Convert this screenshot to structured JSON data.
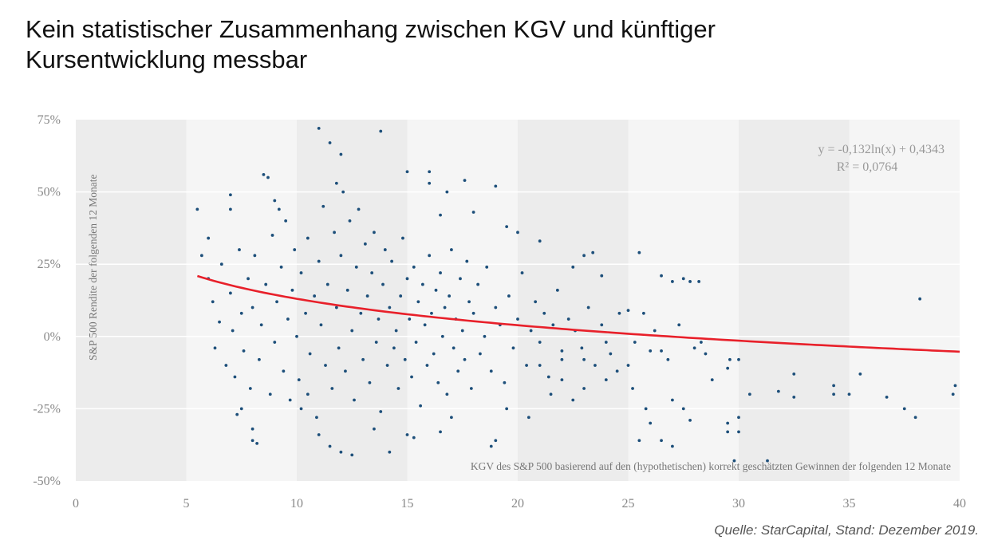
{
  "header": {
    "title_line1": "Kein statistischer Zusammenhang zwischen KGV und künftiger",
    "title_line2": "Kursentwicklung messbar"
  },
  "footer": {
    "source": "Quelle: StarCapital, Stand: Dezember 2019."
  },
  "chart_data": {
    "type": "scatter",
    "title": "",
    "xlabel": "KGV des S&P 500 basierend auf den (hypothetischen) korrekt geschätzten Gewinnen der folgenden 12 Monate",
    "ylabel": "S&P 500 Rendite der folgenden 12 Monate",
    "xlim": [
      0,
      40
    ],
    "ylim": [
      -50,
      75
    ],
    "x_ticks": [
      "0",
      "5",
      "10",
      "15",
      "20",
      "25",
      "30",
      "35",
      "40"
    ],
    "y_ticks": [
      "75%",
      "50%",
      "25%",
      "0%",
      "-25%",
      "-50%"
    ],
    "grid": "horizontal",
    "background_bands": "alternating every 5 units",
    "colors": {
      "points": "#1d4f7a",
      "trendline": "#e8202a",
      "band_dark": "#ececec",
      "band_light": "#f5f5f5"
    },
    "trendline": {
      "type": "logarithmic",
      "a": -0.132,
      "b": 0.4343,
      "x_range": [
        5.5,
        40
      ],
      "equation": "y = -0,132ln(x) + 0,4343",
      "r2": "R² = 0,0764"
    },
    "points": [
      [
        5.5,
        44
      ],
      [
        11,
        72
      ],
      [
        13.8,
        71
      ],
      [
        11.5,
        67
      ],
      [
        8.5,
        56
      ],
      [
        8.7,
        55
      ],
      [
        15,
        57
      ],
      [
        17.6,
        54
      ],
      [
        38.2,
        13
      ],
      [
        38,
        -28
      ],
      [
        39.8,
        -17
      ],
      [
        39.7,
        -20
      ],
      [
        37.5,
        -25
      ],
      [
        36.7,
        -21
      ],
      [
        35.5,
        -13
      ],
      [
        34.3,
        -17
      ],
      [
        34.3,
        -20
      ],
      [
        35,
        -20
      ],
      [
        32.5,
        -21
      ],
      [
        32.5,
        -13
      ],
      [
        31.8,
        -19
      ],
      [
        30.5,
        -20
      ],
      [
        31.3,
        -43
      ],
      [
        29.8,
        -43
      ],
      [
        30,
        -28
      ],
      [
        29.5,
        -30
      ],
      [
        29.5,
        -33
      ],
      [
        30,
        -33
      ],
      [
        29.6,
        -8
      ],
      [
        29.5,
        -11
      ],
      [
        30,
        -8
      ],
      [
        28.8,
        -15
      ],
      [
        27,
        -38
      ],
      [
        26.5,
        -36
      ],
      [
        25.5,
        -36
      ],
      [
        25.8,
        -25
      ],
      [
        26,
        -30
      ],
      [
        28.2,
        19
      ],
      [
        27.8,
        19
      ],
      [
        27,
        19
      ],
      [
        27.5,
        20
      ],
      [
        26.5,
        21
      ],
      [
        25.5,
        29
      ],
      [
        23.8,
        21
      ],
      [
        23,
        28
      ],
      [
        23.4,
        29
      ],
      [
        22.5,
        24
      ],
      [
        19.5,
        38
      ],
      [
        20,
        36
      ],
      [
        21,
        33
      ],
      [
        19,
        52
      ],
      [
        18,
        43
      ],
      [
        16,
        57
      ],
      [
        16,
        53
      ],
      [
        16.8,
        50
      ],
      [
        16.5,
        42
      ],
      [
        12,
        63
      ],
      [
        11.8,
        53
      ],
      [
        9,
        47
      ],
      [
        9.2,
        44
      ],
      [
        7,
        49
      ],
      [
        7,
        44
      ],
      [
        6,
        34
      ],
      [
        5.7,
        28
      ],
      [
        8.2,
        -37
      ],
      [
        8,
        -36
      ],
      [
        8,
        -32
      ],
      [
        7.5,
        -25
      ],
      [
        7.3,
        -27
      ],
      [
        12,
        -40
      ],
      [
        12.5,
        -41
      ],
      [
        11.5,
        -38
      ],
      [
        14.2,
        -40
      ],
      [
        15,
        -34
      ],
      [
        15.3,
        -35
      ],
      [
        16.5,
        -33
      ],
      [
        18.8,
        -38
      ],
      [
        19,
        -36
      ],
      [
        20.5,
        -28
      ],
      [
        19.5,
        -25
      ],
      [
        10.2,
        -25
      ],
      [
        10.5,
        -20
      ],
      [
        11,
        -34
      ],
      [
        13.5,
        -32
      ],
      [
        17,
        -28
      ],
      [
        21.5,
        -20
      ],
      [
        22.5,
        -22
      ],
      [
        23,
        -18
      ],
      [
        24,
        -15
      ],
      [
        24.5,
        -12
      ],
      [
        22,
        -15
      ],
      [
        21,
        -10
      ],
      [
        22,
        -5
      ],
      [
        23,
        -8
      ],
      [
        24,
        -2
      ],
      [
        25,
        -10
      ],
      [
        25.2,
        -18
      ],
      [
        26,
        -5
      ],
      [
        26.5,
        -5
      ],
      [
        27,
        -22
      ],
      [
        27.5,
        -25
      ],
      [
        27.8,
        -29
      ],
      [
        28.3,
        -2
      ],
      [
        28.5,
        -6
      ],
      [
        6,
        20
      ],
      [
        6.2,
        12
      ],
      [
        6.3,
        -4
      ],
      [
        6.5,
        5
      ],
      [
        6.6,
        25
      ],
      [
        6.8,
        -10
      ],
      [
        7,
        15
      ],
      [
        7.1,
        2
      ],
      [
        7.2,
        -14
      ],
      [
        7.4,
        30
      ],
      [
        7.5,
        8
      ],
      [
        7.6,
        -5
      ],
      [
        7.8,
        20
      ],
      [
        7.9,
        -18
      ],
      [
        8,
        10
      ],
      [
        8.1,
        28
      ],
      [
        8.3,
        -8
      ],
      [
        8.4,
        4
      ],
      [
        8.6,
        18
      ],
      [
        8.8,
        -20
      ],
      [
        8.9,
        35
      ],
      [
        9,
        -2
      ],
      [
        9.1,
        12
      ],
      [
        9.3,
        24
      ],
      [
        9.4,
        -12
      ],
      [
        9.5,
        40
      ],
      [
        9.6,
        6
      ],
      [
        9.7,
        -22
      ],
      [
        9.8,
        16
      ],
      [
        9.9,
        30
      ],
      [
        10,
        0
      ],
      [
        10.1,
        -15
      ],
      [
        10.2,
        22
      ],
      [
        10.4,
        8
      ],
      [
        10.5,
        34
      ],
      [
        10.6,
        -6
      ],
      [
        10.8,
        14
      ],
      [
        10.9,
        -28
      ],
      [
        11,
        26
      ],
      [
        11.1,
        4
      ],
      [
        11.2,
        45
      ],
      [
        11.3,
        -10
      ],
      [
        11.4,
        18
      ],
      [
        11.6,
        -18
      ],
      [
        11.7,
        36
      ],
      [
        11.8,
        10
      ],
      [
        11.9,
        -4
      ],
      [
        12,
        28
      ],
      [
        12.1,
        50
      ],
      [
        12.2,
        -12
      ],
      [
        12.3,
        16
      ],
      [
        12.4,
        40
      ],
      [
        12.5,
        2
      ],
      [
        12.6,
        -22
      ],
      [
        12.7,
        24
      ],
      [
        12.8,
        44
      ],
      [
        12.9,
        8
      ],
      [
        13,
        -8
      ],
      [
        13.1,
        32
      ],
      [
        13.2,
        14
      ],
      [
        13.3,
        -16
      ],
      [
        13.4,
        22
      ],
      [
        13.5,
        36
      ],
      [
        13.6,
        -2
      ],
      [
        13.7,
        6
      ],
      [
        13.8,
        -26
      ],
      [
        13.9,
        18
      ],
      [
        14,
        30
      ],
      [
        14.1,
        -10
      ],
      [
        14.2,
        10
      ],
      [
        14.3,
        26
      ],
      [
        14.4,
        -4
      ],
      [
        14.5,
        2
      ],
      [
        14.6,
        -18
      ],
      [
        14.7,
        14
      ],
      [
        14.8,
        34
      ],
      [
        14.9,
        -8
      ],
      [
        15,
        20
      ],
      [
        15.1,
        6
      ],
      [
        15.2,
        -14
      ],
      [
        15.3,
        24
      ],
      [
        15.4,
        -2
      ],
      [
        15.5,
        12
      ],
      [
        15.6,
        -24
      ],
      [
        15.7,
        18
      ],
      [
        15.8,
        4
      ],
      [
        15.9,
        -10
      ],
      [
        16,
        28
      ],
      [
        16.1,
        8
      ],
      [
        16.2,
        -6
      ],
      [
        16.3,
        16
      ],
      [
        16.4,
        -16
      ],
      [
        16.5,
        22
      ],
      [
        16.6,
        0
      ],
      [
        16.7,
        10
      ],
      [
        16.8,
        -20
      ],
      [
        16.9,
        14
      ],
      [
        17,
        30
      ],
      [
        17.1,
        -4
      ],
      [
        17.2,
        6
      ],
      [
        17.3,
        -12
      ],
      [
        17.4,
        20
      ],
      [
        17.5,
        2
      ],
      [
        17.6,
        -8
      ],
      [
        17.7,
        26
      ],
      [
        17.8,
        12
      ],
      [
        17.9,
        -18
      ],
      [
        18,
        8
      ],
      [
        18.2,
        18
      ],
      [
        18.3,
        -6
      ],
      [
        18.5,
        0
      ],
      [
        18.6,
        24
      ],
      [
        18.8,
        -12
      ],
      [
        19,
        10
      ],
      [
        19.2,
        4
      ],
      [
        19.4,
        -16
      ],
      [
        19.6,
        14
      ],
      [
        19.8,
        -4
      ],
      [
        20,
        6
      ],
      [
        20.2,
        22
      ],
      [
        20.4,
        -10
      ],
      [
        20.6,
        2
      ],
      [
        20.8,
        12
      ],
      [
        21,
        -2
      ],
      [
        21.2,
        8
      ],
      [
        21.4,
        -14
      ],
      [
        21.6,
        4
      ],
      [
        21.8,
        16
      ],
      [
        22,
        -8
      ],
      [
        22.3,
        6
      ],
      [
        22.6,
        2
      ],
      [
        22.9,
        -4
      ],
      [
        23.2,
        10
      ],
      [
        23.5,
        -10
      ],
      [
        23.8,
        4
      ],
      [
        24.2,
        -6
      ],
      [
        24.6,
        8
      ],
      [
        25,
        9
      ],
      [
        25.3,
        -2
      ],
      [
        25.7,
        8
      ],
      [
        26.2,
        2
      ],
      [
        26.8,
        -8
      ],
      [
        27.3,
        4
      ],
      [
        28,
        -4
      ]
    ]
  }
}
